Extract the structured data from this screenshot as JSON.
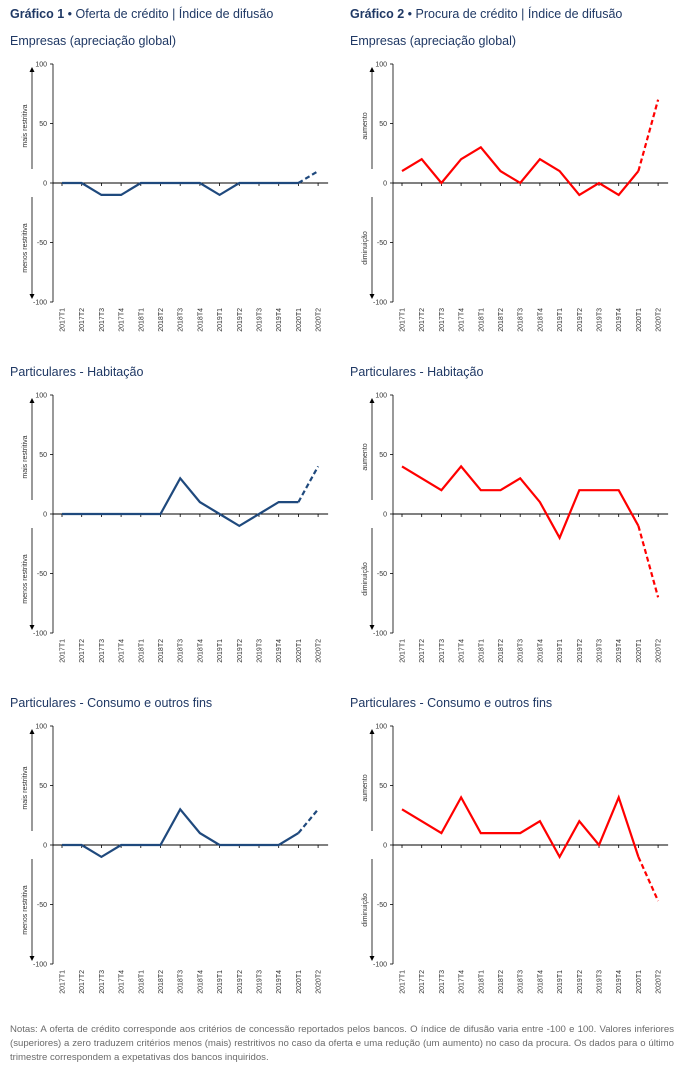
{
  "header": {
    "left": {
      "title_bold": "Gráfico 1",
      "title_rest": " • Oferta de crédito | Índice de difusão"
    },
    "right": {
      "title_bold": "Gráfico 2",
      "title_rest": " • Procura de crédito | Índice de difusão"
    }
  },
  "notes": "Notas: A oferta de crédito corresponde aos critérios de concessão reportados pelos bancos. O índice de difusão varia entre -100 e 100. Valores inferiores (superiores) a zero traduzem critérios menos (mais) restritivos no caso da oferta e uma redução (um aumento) no caso da procura. Os dados para o último trimestre correspondem a expetativas dos bancos inquiridos.",
  "colors": {
    "oferta": "#1f497d",
    "procura": "#ff0000",
    "axis": "#000000",
    "text": "#1f3864"
  },
  "chart_data": [
    {
      "type": "line",
      "title": "Empresas (apreciação global)",
      "categories": [
        "2017T1",
        "2017T2",
        "2017T3",
        "2017T4",
        "2018T1",
        "2018T2",
        "2018T3",
        "2018T4",
        "2019T1",
        "2019T2",
        "2019T3",
        "2019T4",
        "2020T1",
        "2020T2"
      ],
      "values": [
        0,
        0,
        -10,
        -10,
        0,
        0,
        0,
        0,
        -10,
        0,
        0,
        0,
        0,
        10
      ],
      "ylim": [
        -100,
        100
      ],
      "yticks": [
        100,
        50,
        0,
        -50,
        -100
      ],
      "upper_label": "mais restritiva",
      "lower_label": "menos restritiva",
      "color": "#1f497d",
      "dashed_from_index": 12
    },
    {
      "type": "line",
      "title": "Empresas (apreciação global)",
      "categories": [
        "2017T1",
        "2017T2",
        "2017T3",
        "2017T4",
        "2018T1",
        "2018T2",
        "2018T3",
        "2018T4",
        "2019T1",
        "2019T2",
        "2019T3",
        "2019T4",
        "2020T1",
        "2020T2"
      ],
      "values": [
        10,
        20,
        0,
        20,
        30,
        10,
        0,
        20,
        10,
        -10,
        0,
        -10,
        10,
        70
      ],
      "ylim": [
        -100,
        100
      ],
      "yticks": [
        100,
        50,
        0,
        -50,
        -100
      ],
      "upper_label": "aumento",
      "lower_label": "diminuição",
      "color": "#ff0000",
      "dashed_from_index": 12
    },
    {
      "type": "line",
      "title": "Particulares - Habitação",
      "categories": [
        "2017T1",
        "2017T2",
        "2017T3",
        "2017T4",
        "2018T1",
        "2018T2",
        "2018T3",
        "2018T4",
        "2019T1",
        "2019T2",
        "2019T3",
        "2019T4",
        "2020T1",
        "2020T2"
      ],
      "values": [
        0,
        0,
        0,
        0,
        0,
        0,
        30,
        10,
        0,
        -10,
        0,
        10,
        10,
        40
      ],
      "ylim": [
        -100,
        100
      ],
      "yticks": [
        100,
        50,
        0,
        -50,
        -100
      ],
      "upper_label": "mais restritiva",
      "lower_label": "menos restritiva",
      "color": "#1f497d",
      "dashed_from_index": 12
    },
    {
      "type": "line",
      "title": "Particulares - Habitação",
      "categories": [
        "2017T1",
        "2017T2",
        "2017T3",
        "2017T4",
        "2018T1",
        "2018T2",
        "2018T3",
        "2018T4",
        "2019T1",
        "2019T2",
        "2019T3",
        "2019T4",
        "2020T1",
        "2020T2"
      ],
      "values": [
        40,
        30,
        20,
        40,
        20,
        20,
        30,
        10,
        -20,
        20,
        20,
        20,
        -10,
        -70
      ],
      "ylim": [
        -100,
        100
      ],
      "yticks": [
        100,
        50,
        0,
        -50,
        -100
      ],
      "upper_label": "aumento",
      "lower_label": "diminuição",
      "color": "#ff0000",
      "dashed_from_index": 12
    },
    {
      "type": "line",
      "title": "Particulares - Consumo e outros fins",
      "categories": [
        "2017T1",
        "2017T2",
        "2017T3",
        "2017T4",
        "2018T1",
        "2018T2",
        "2018T3",
        "2018T4",
        "2019T1",
        "2019T2",
        "2019T3",
        "2019T4",
        "2020T1",
        "2020T2"
      ],
      "values": [
        0,
        0,
        -10,
        0,
        0,
        0,
        30,
        10,
        0,
        0,
        0,
        0,
        10,
        30
      ],
      "ylim": [
        -100,
        100
      ],
      "yticks": [
        100,
        50,
        0,
        -50,
        -100
      ],
      "upper_label": "mais restritiva",
      "lower_label": "menos restritiva",
      "color": "#1f497d",
      "dashed_from_index": 12
    },
    {
      "type": "line",
      "title": "Particulares - Consumo e outros fins",
      "categories": [
        "2017T1",
        "2017T2",
        "2017T3",
        "2017T4",
        "2018T1",
        "2018T2",
        "2018T3",
        "2018T4",
        "2019T1",
        "2019T2",
        "2019T3",
        "2019T4",
        "2020T1",
        "2020T2"
      ],
      "values": [
        30,
        20,
        10,
        40,
        10,
        10,
        10,
        20,
        -10,
        20,
        0,
        40,
        -10,
        -47
      ],
      "ylim": [
        -100,
        100
      ],
      "yticks": [
        100,
        50,
        0,
        -50,
        -100
      ],
      "upper_label": "aumento",
      "lower_label": "diminuição",
      "color": "#ff0000",
      "dashed_from_index": 12
    }
  ]
}
